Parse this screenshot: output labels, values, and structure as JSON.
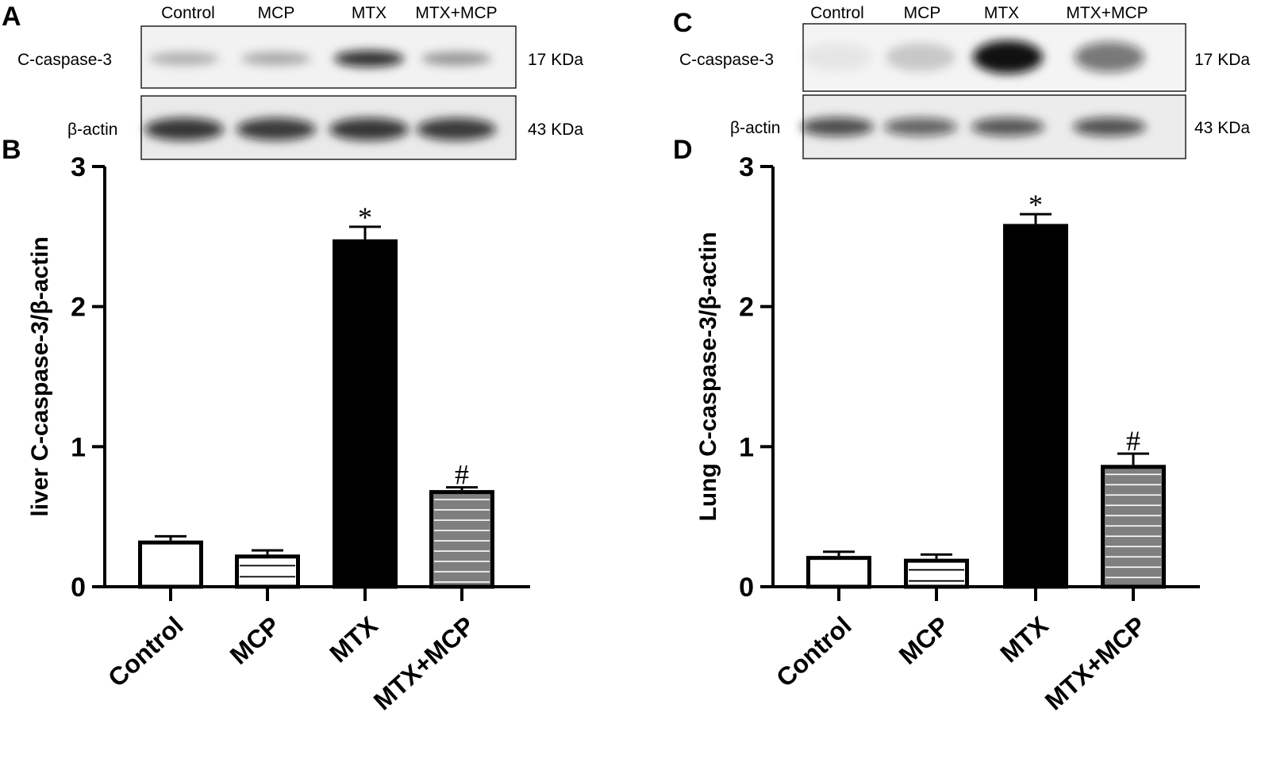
{
  "panels": {
    "A": "A",
    "B": "B",
    "C": "C",
    "D": "D"
  },
  "blots": [
    {
      "lanes": [
        "Control",
        "MCP",
        "MTX",
        "MTX+MCP"
      ],
      "rows": [
        {
          "protein": "C-caspase-3",
          "size": "17 KDa",
          "intensity": [
            0.28,
            0.3,
            0.85,
            0.38
          ]
        },
        {
          "protein": "β-actin",
          "size": "43 KDa",
          "intensity": [
            0.82,
            0.8,
            0.82,
            0.8
          ]
        }
      ]
    },
    {
      "lanes": [
        "Control",
        "MCP",
        "MTX",
        "MTX+MCP"
      ],
      "rows": [
        {
          "protein": "C-caspase-3",
          "size": "17 KDa",
          "intensity": [
            0.06,
            0.18,
            0.98,
            0.55
          ]
        },
        {
          "protein": "β-actin",
          "size": "43 KDa",
          "intensity": [
            0.72,
            0.62,
            0.68,
            0.7
          ]
        }
      ]
    }
  ],
  "chart_data": [
    {
      "type": "bar",
      "panel": "B",
      "categories": [
        "Control",
        "MCP",
        "MTX",
        "MTX+MCP"
      ],
      "values": [
        0.33,
        0.23,
        2.48,
        0.69
      ],
      "errors": [
        0.03,
        0.03,
        0.09,
        0.02
      ],
      "annotations": [
        "",
        "",
        "*",
        "#"
      ],
      "ylabel": "liver C-caspase-3/β-actin",
      "ylim": [
        0,
        3
      ],
      "yticks": [
        "0",
        "1",
        "2",
        "3"
      ],
      "bar_styles": [
        "white",
        "white-striped",
        "black",
        "gray-striped"
      ],
      "grid": false
    },
    {
      "type": "bar",
      "panel": "D",
      "categories": [
        "Control",
        "MCP",
        "MTX",
        "MTX+MCP"
      ],
      "values": [
        0.22,
        0.2,
        2.59,
        0.87
      ],
      "errors": [
        0.03,
        0.03,
        0.07,
        0.08
      ],
      "annotations": [
        "",
        "",
        "*",
        "#"
      ],
      "ylabel": "Lung C-caspase-3/β-actin",
      "ylim": [
        0,
        3
      ],
      "yticks": [
        "0",
        "1",
        "2",
        "3"
      ],
      "bar_styles": [
        "white",
        "white-striped",
        "black",
        "gray-striped"
      ],
      "grid": false
    }
  ]
}
